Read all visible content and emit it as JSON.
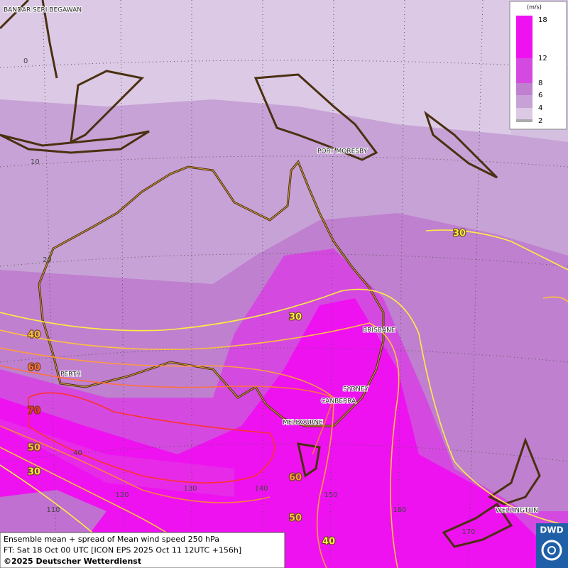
{
  "places": [
    "BANDAR SERI BEGAWAN",
    "PORT MORESBY",
    "BRISBANE",
    "PERTH",
    "SYDNEY",
    "CANBERRA",
    "MELBOURNE",
    "WELLINGTON"
  ],
  "latitude_labels": [
    0,
    10,
    20,
    40
  ],
  "longitude_labels": [
    110,
    120,
    130,
    140,
    150,
    160,
    170
  ],
  "contour_labels": [
    30,
    40,
    60,
    70,
    50,
    30,
    30,
    60,
    50,
    40
  ],
  "legend": {
    "unit": "(m/s)",
    "levels": [
      18,
      12,
      8,
      6,
      4,
      2
    ]
  },
  "footer": {
    "lines": [
      "Ensemble mean + spread of Mean wind speed 250 hPa",
      "FT: Sat 18 Oct 00 UTC [ICON EPS 2025 Oct 11 12UTC +156h]",
      "©2025 Deutscher Wetterdienst"
    ]
  },
  "logo": "DWD"
}
